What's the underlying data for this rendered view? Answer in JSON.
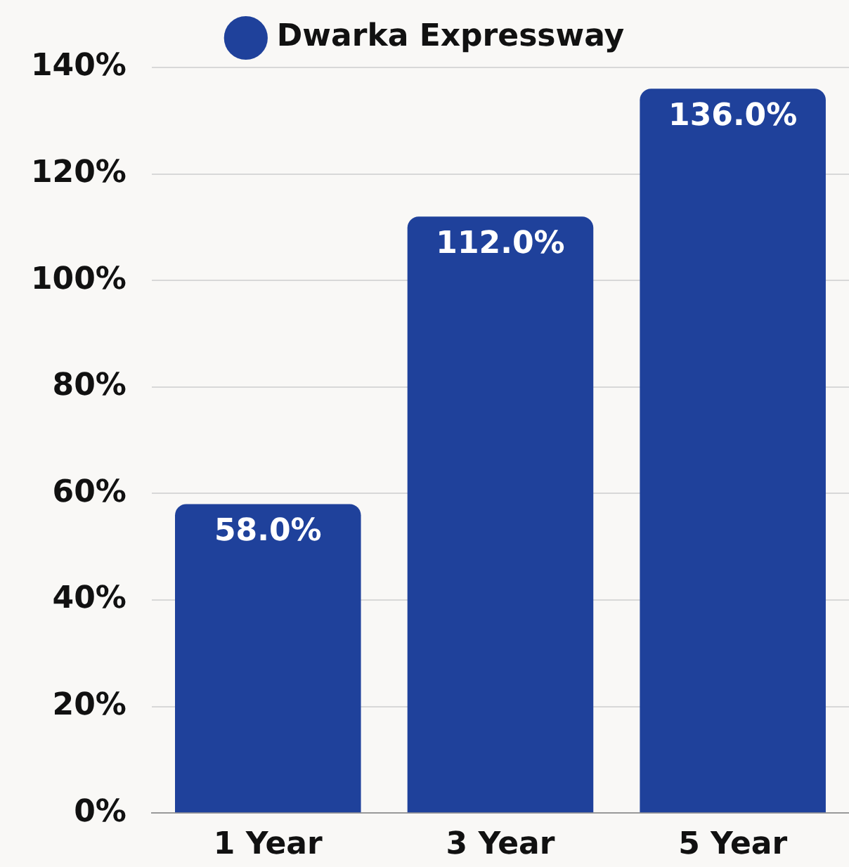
{
  "chart_data": {
    "type": "bar",
    "categories": [
      "1 Year",
      "3 Year",
      "5 Year"
    ],
    "series": [
      {
        "name": "Dwarka Expressway",
        "color": "#1f419b",
        "values": [
          58,
          112,
          136
        ],
        "value_labels": [
          "58.0%",
          "112.0%",
          "136.0%"
        ]
      }
    ],
    "ylim": [
      0,
      140
    ],
    "yticks": [
      {
        "value": 0,
        "label": "0%"
      },
      {
        "value": 20,
        "label": "20%"
      },
      {
        "value": 40,
        "label": "40%"
      },
      {
        "value": 60,
        "label": "60%"
      },
      {
        "value": 80,
        "label": "80%"
      },
      {
        "value": 100,
        "label": "100%"
      },
      {
        "value": 120,
        "label": "120%"
      },
      {
        "value": 140,
        "label": "140%"
      }
    ],
    "grid": "y",
    "legend": "top"
  }
}
